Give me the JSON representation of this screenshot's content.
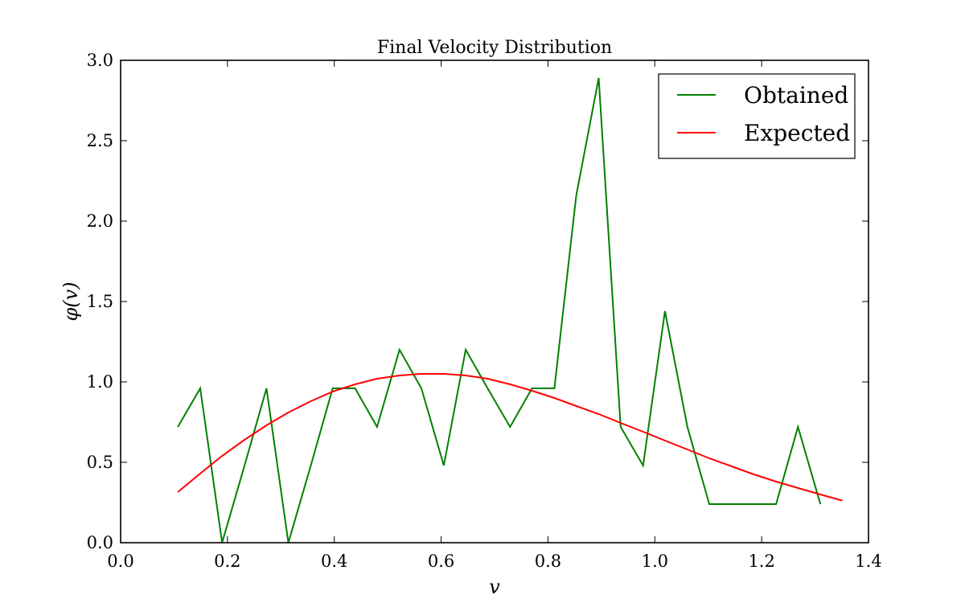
{
  "chart_data": {
    "type": "line",
    "title": "Final Velocity Distribution",
    "xlabel": "v",
    "ylabel": "φ(v)",
    "xlim": [
      0.0,
      1.4
    ],
    "ylim": [
      0.0,
      3.0
    ],
    "x_ticks": [
      "0.0",
      "0.2",
      "0.4",
      "0.6",
      "0.8",
      "1.0",
      "1.2",
      "1.4"
    ],
    "y_ticks": [
      "0.0",
      "0.5",
      "1.0",
      "1.5",
      "2.0",
      "2.5",
      "3.0"
    ],
    "x_tick_values": [
      0.0,
      0.2,
      0.4,
      0.6,
      0.8,
      1.0,
      1.2,
      1.4
    ],
    "y_tick_values": [
      0.0,
      0.5,
      1.0,
      1.5,
      2.0,
      2.5,
      3.0
    ],
    "grid": false,
    "legend_position": "top-right",
    "series": [
      {
        "name": "Obtained",
        "color": "#008000",
        "x": [
          0.107,
          0.149,
          0.19,
          0.232,
          0.273,
          0.314,
          0.356,
          0.397,
          0.439,
          0.48,
          0.522,
          0.563,
          0.605,
          0.646,
          0.687,
          0.729,
          0.77,
          0.812,
          0.853,
          0.895,
          0.936,
          0.978,
          1.019,
          1.061,
          1.102,
          1.144,
          1.185,
          1.227,
          1.268,
          1.31
        ],
        "y": [
          0.72,
          0.96,
          0.0,
          0.48,
          0.96,
          0.0,
          0.48,
          0.96,
          0.96,
          0.72,
          1.2,
          0.96,
          0.48,
          1.2,
          0.96,
          0.72,
          0.96,
          0.96,
          2.16,
          2.89,
          0.72,
          0.48,
          1.44,
          0.72,
          0.24,
          0.24,
          0.24,
          0.24,
          0.72,
          0.24
        ]
      },
      {
        "name": "Expected",
        "color": "#ff0000",
        "x": [
          0.107,
          0.149,
          0.19,
          0.232,
          0.273,
          0.314,
          0.356,
          0.397,
          0.439,
          0.48,
          0.522,
          0.563,
          0.605,
          0.646,
          0.687,
          0.729,
          0.77,
          0.812,
          0.853,
          0.895,
          0.936,
          0.978,
          1.019,
          1.061,
          1.102,
          1.144,
          1.185,
          1.227,
          1.268,
          1.31,
          1.351
        ],
        "y": [
          0.315,
          0.43,
          0.54,
          0.64,
          0.73,
          0.81,
          0.88,
          0.94,
          0.985,
          1.02,
          1.04,
          1.05,
          1.05,
          1.04,
          1.02,
          0.985,
          0.945,
          0.9,
          0.85,
          0.8,
          0.745,
          0.69,
          0.635,
          0.58,
          0.525,
          0.475,
          0.425,
          0.38,
          0.34,
          0.3,
          0.262
        ]
      }
    ]
  }
}
